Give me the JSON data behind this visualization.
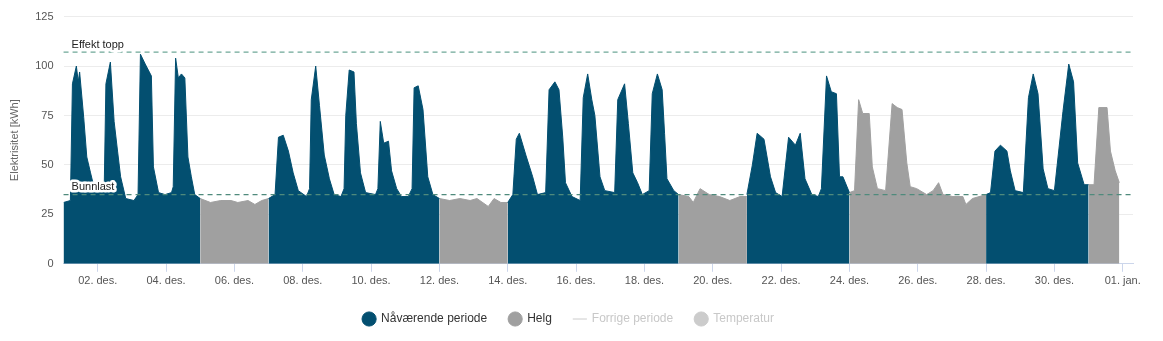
{
  "chart_data": {
    "type": "area",
    "ylabel": "Elektrisitet [kWh]",
    "xlim": [
      1,
      32.3
    ],
    "xticks": [
      {
        "value": 2,
        "label": "02. des."
      },
      {
        "value": 4,
        "label": "04. des."
      },
      {
        "value": 6,
        "label": "06. des."
      },
      {
        "value": 8,
        "label": "08. des."
      },
      {
        "value": 10,
        "label": "10. des."
      },
      {
        "value": 12,
        "label": "12. des."
      },
      {
        "value": 14,
        "label": "14. des."
      },
      {
        "value": 16,
        "label": "16. des."
      },
      {
        "value": 18,
        "label": "18. des."
      },
      {
        "value": 20,
        "label": "20. des."
      },
      {
        "value": 22,
        "label": "22. des."
      },
      {
        "value": 24,
        "label": "24. des."
      },
      {
        "value": 26,
        "label": "26. des."
      },
      {
        "value": 28,
        "label": "28. des."
      },
      {
        "value": 30,
        "label": "30. des."
      },
      {
        "value": 32,
        "label": "01. jan."
      }
    ],
    "ylim": [
      0,
      125
    ],
    "yticks": [
      0,
      25,
      50,
      75,
      100,
      125
    ],
    "grid": "y",
    "legend": "bottom",
    "marker": "none",
    "ref_lines": [
      {
        "axis": "y",
        "value": 107,
        "label": "Effekt topp",
        "color": "#6fa898",
        "line_style": "dashed"
      },
      {
        "axis": "y",
        "value": 35,
        "label": "Bunnlast",
        "color": "#4f8a7c",
        "line_style": "dashed"
      }
    ],
    "series": [
      {
        "name": "Nåværende periode",
        "color": "#034f70",
        "x": [
          1.0,
          1.2,
          1.26,
          1.375,
          1.43,
          1.47,
          1.59,
          1.68,
          1.79,
          1.86,
          1.95,
          2.19,
          2.24,
          2.37,
          2.48,
          2.58,
          2.67,
          2.82,
          3.06,
          3.18,
          3.25,
          3.39,
          3.57,
          3.63,
          3.78,
          3.97,
          4.16,
          4.21,
          4.28,
          4.36,
          4.45,
          4.55,
          4.64,
          4.74,
          4.84,
          5.0,
          6.0,
          7.0,
          7.19,
          7.29,
          7.43,
          7.58,
          7.72,
          7.87,
          8.11,
          8.2,
          8.25,
          8.38,
          8.49,
          8.63,
          8.78,
          8.92,
          9.12,
          9.21,
          9.26,
          9.36,
          9.5,
          9.57,
          9.69,
          9.84,
          10.13,
          10.2,
          10.27,
          10.37,
          10.51,
          10.6,
          10.75,
          10.89,
          11.09,
          11.2,
          11.26,
          11.38,
          11.52,
          11.66,
          11.81,
          12.0,
          13.0,
          14.0,
          14.15,
          14.25,
          14.34,
          14.53,
          14.73,
          14.87,
          15.11,
          15.21,
          15.38,
          15.5,
          15.61,
          15.69,
          15.88,
          16.12,
          16.21,
          16.34,
          16.46,
          16.55,
          16.7,
          16.84,
          17.13,
          17.22,
          17.42,
          17.53,
          17.66,
          17.8,
          17.94,
          18.14,
          18.23,
          18.38,
          18.52,
          18.59,
          18.66,
          18.86,
          19.0,
          20.0,
          21.0,
          21.16,
          21.3,
          21.5,
          21.69,
          21.84,
          22.03,
          22.22,
          22.42,
          22.56,
          22.7,
          22.9,
          23.09,
          23.18,
          23.33,
          23.47,
          23.62,
          23.71,
          23.81,
          24.0,
          25.0,
          28.0,
          28.13,
          28.26,
          28.42,
          28.61,
          28.71,
          28.85,
          29.09,
          29.24,
          29.38,
          29.52,
          29.67,
          29.81,
          30.0,
          30.25,
          30.42,
          30.56,
          30.68,
          30.87,
          31.0
        ],
        "values": [
          31,
          32,
          91,
          100,
          92,
          97,
          74,
          54,
          46,
          41,
          39,
          38,
          91,
          102,
          72,
          57,
          44,
          33,
          32,
          35,
          106,
          101,
          95,
          49,
          36,
          35,
          36,
          39,
          104,
          94,
          96,
          94,
          54,
          44,
          35,
          33,
          null,
          33,
          35,
          64,
          65,
          57,
          46,
          37,
          34,
          38,
          83,
          100,
          80,
          55,
          43,
          35,
          34,
          38,
          75,
          98,
          97,
          71,
          46,
          36,
          35,
          38,
          72,
          61,
          62,
          47,
          38,
          34,
          34,
          38,
          89,
          90,
          78,
          44,
          35,
          33,
          null,
          31,
          35,
          63,
          66,
          55,
          44,
          35,
          36,
          88,
          92,
          88,
          64,
          41,
          34,
          32,
          84,
          96,
          83,
          75,
          44,
          37,
          36,
          83,
          91,
          71,
          46,
          41,
          35,
          37,
          86,
          96,
          88,
          66,
          43,
          37,
          35,
          null,
          35,
          50,
          66,
          63,
          44,
          36,
          34,
          64,
          60,
          66,
          43,
          35,
          34,
          38,
          95,
          87,
          86,
          44,
          44,
          36,
          null,
          35,
          36,
          57,
          60,
          57,
          47,
          37,
          36,
          84,
          96,
          86,
          48,
          38,
          37,
          77,
          101,
          92,
          51,
          40,
          40
        ]
      },
      {
        "name": "Helg",
        "color": "#a0a0a0",
        "x": [
          5.0,
          5.3,
          5.6,
          5.9,
          6.1,
          6.4,
          6.6,
          6.8,
          7.0,
          10.0,
          12.0,
          12.3,
          12.6,
          12.9,
          13.1,
          13.43,
          13.6,
          13.8,
          14.0,
          17.0,
          19.0,
          19.3,
          19.43,
          19.63,
          19.9,
          20.2,
          20.5,
          20.8,
          21.0,
          22.5,
          24.0,
          24.15,
          24.27,
          24.39,
          24.58,
          24.67,
          24.82,
          25.06,
          25.25,
          25.4,
          25.54,
          25.68,
          25.78,
          25.97,
          26.26,
          26.45,
          26.61,
          26.74,
          27.03,
          27.32,
          27.41,
          27.6,
          28.0,
          29.5,
          31.0,
          31.16,
          31.3,
          31.54,
          31.64,
          31.78,
          31.9
        ],
        "values": [
          33,
          31,
          32,
          32,
          31,
          32,
          30,
          32,
          33,
          null,
          33,
          32,
          33,
          32,
          33,
          29,
          33,
          31,
          31,
          null,
          35,
          34,
          31,
          38,
          35,
          34,
          32,
          34,
          34,
          null,
          36,
          37,
          83,
          76,
          76,
          49,
          38,
          37,
          81,
          79,
          78,
          51,
          39,
          38,
          35,
          37,
          41,
          35,
          34,
          34,
          30,
          33,
          35,
          null,
          40,
          40,
          79,
          79,
          57,
          47,
          41
        ]
      },
      {
        "name": "Forrige periode",
        "type": "line",
        "color": "#cccccc"
      },
      {
        "name": "Temperatur",
        "type": "scatter",
        "color": "#cccccc"
      }
    ]
  }
}
